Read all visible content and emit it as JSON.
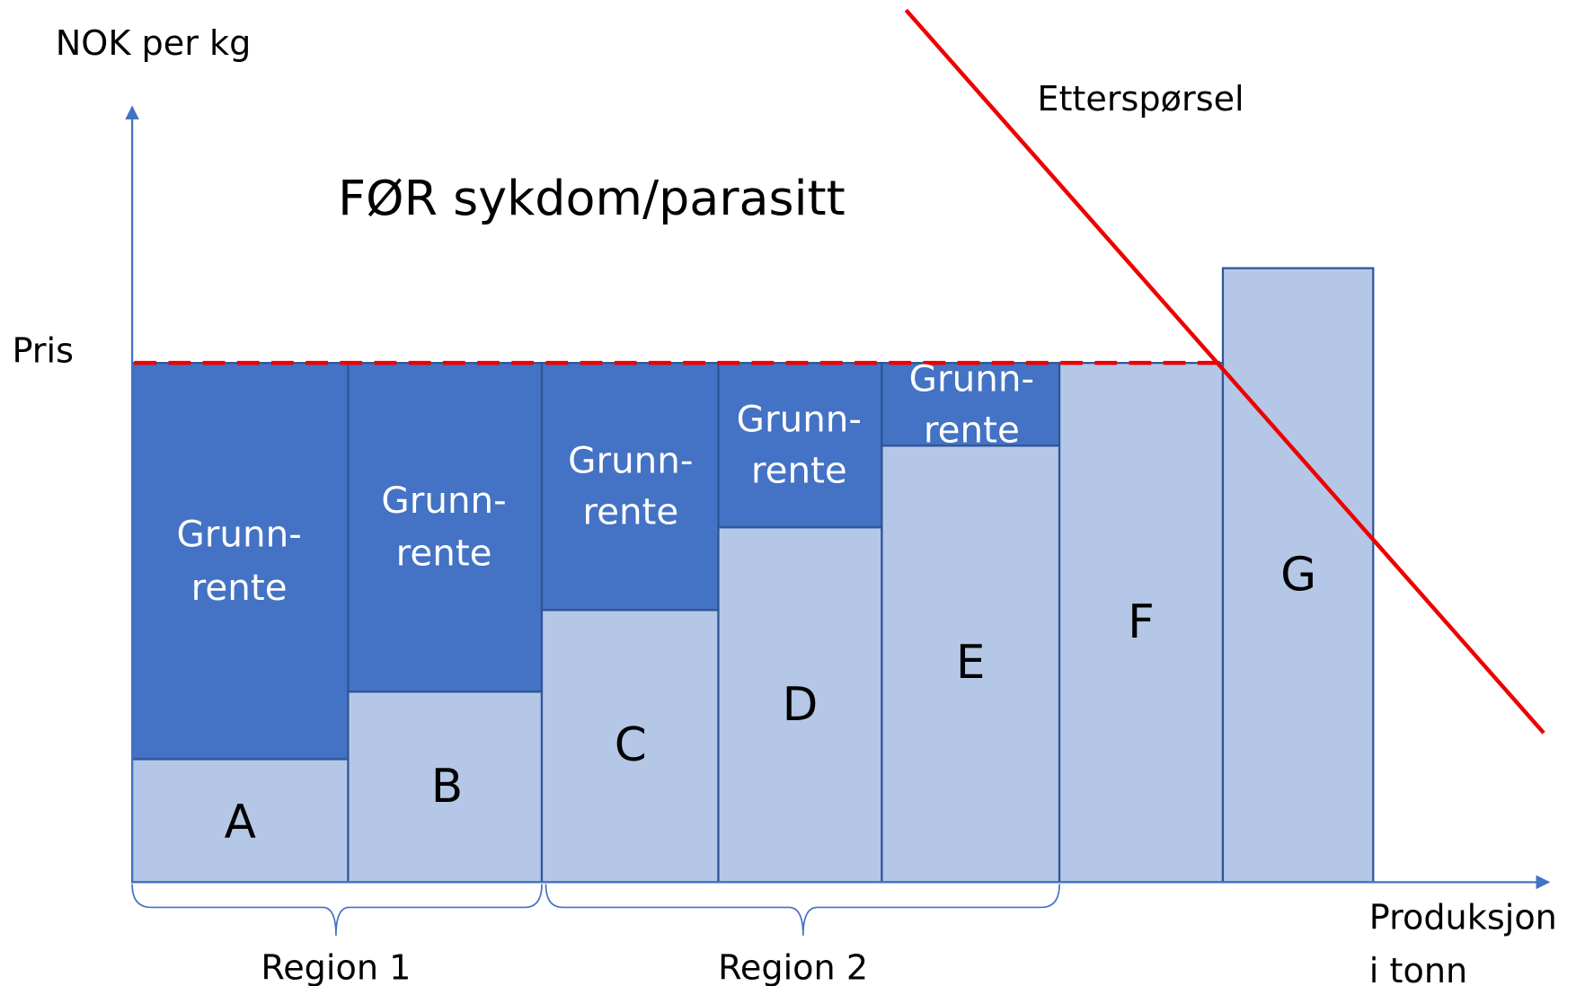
{
  "axis": {
    "y_label": "NOK per kg",
    "price_label": "Pris",
    "x_label_lines": [
      "Produksjon",
      "i tonn"
    ]
  },
  "title": "FØR sykdom/parasitt",
  "demand_label": "Etterspørsel",
  "producers": [
    {
      "label": "A",
      "rent_label_lines": [
        "Grunn-",
        "rente"
      ]
    },
    {
      "label": "B",
      "rent_label_lines": [
        "Grunn-",
        "rente"
      ]
    },
    {
      "label": "C",
      "rent_label_lines": [
        "Grunn-",
        "rente"
      ]
    },
    {
      "label": "D",
      "rent_label_lines": [
        "Grunn-",
        "rente"
      ]
    },
    {
      "label": "E",
      "rent_label_lines": [
        "Grunn-",
        "rente"
      ]
    },
    {
      "label": "F"
    },
    {
      "label": "G"
    }
  ],
  "regions": [
    {
      "label": "Region 1"
    },
    {
      "label": "Region 2"
    }
  ]
}
